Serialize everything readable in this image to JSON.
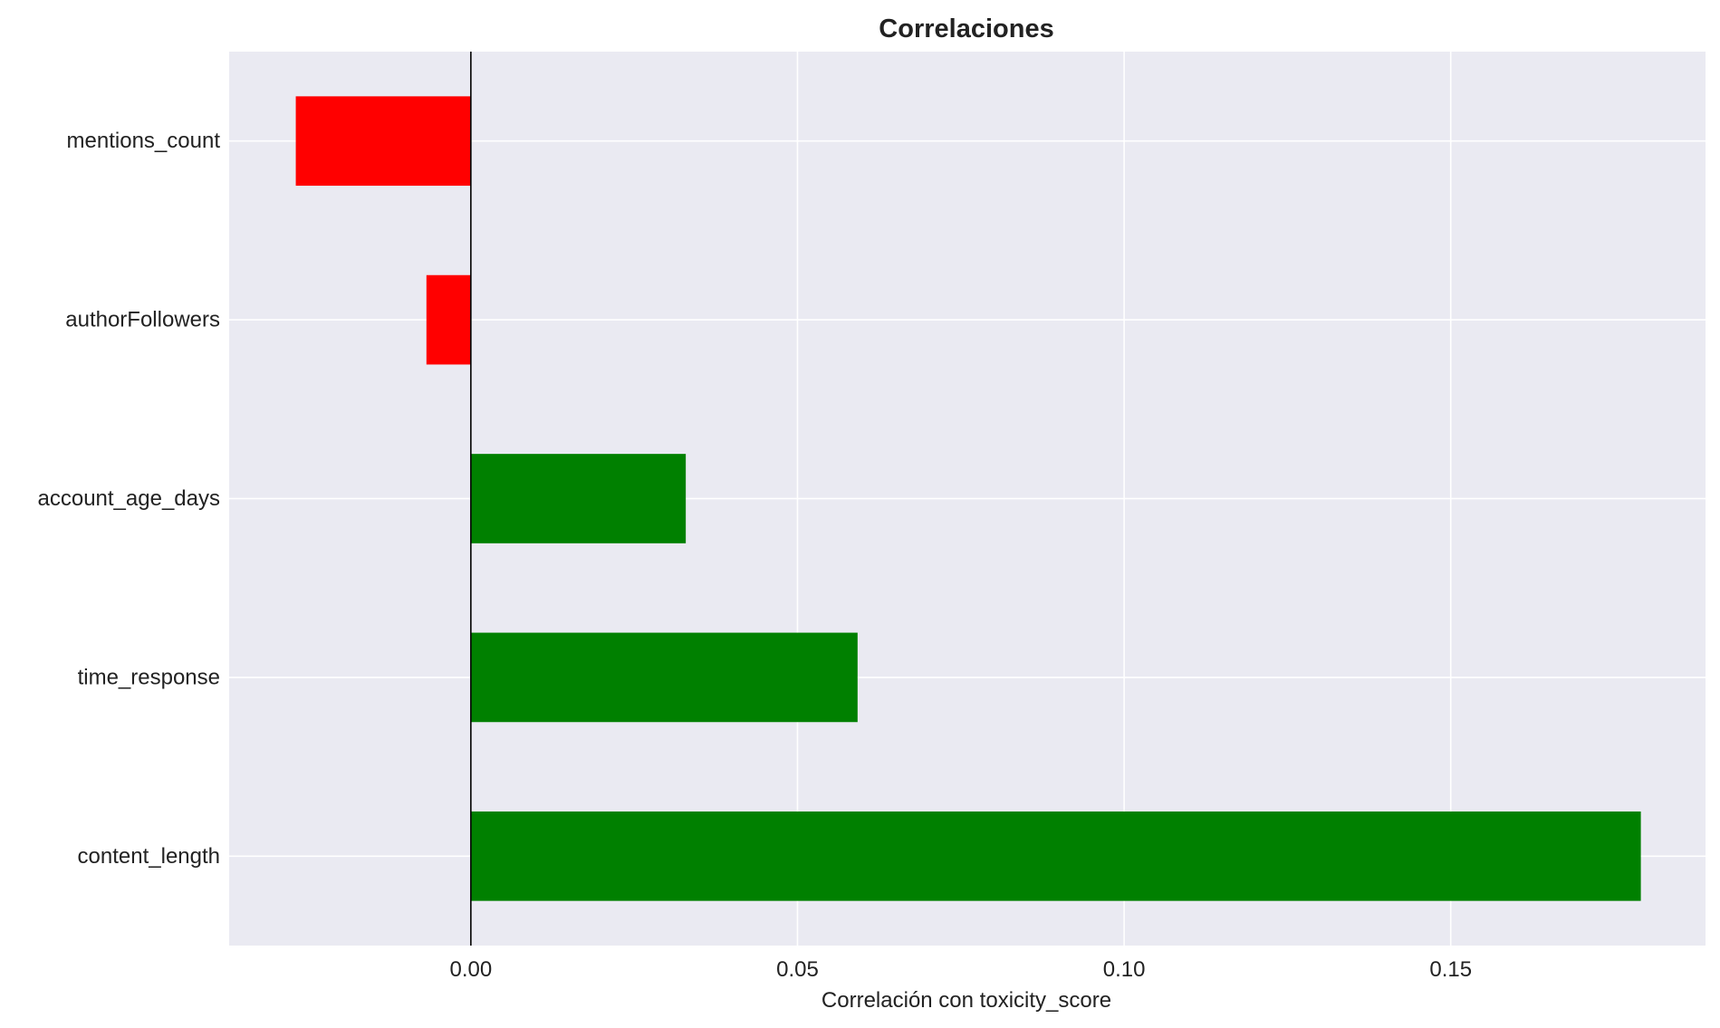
{
  "chart_data": {
    "type": "bar",
    "orientation": "horizontal",
    "title": "Correlaciones",
    "xlabel": "Correlación con toxicity_score",
    "ylabel": "",
    "categories": [
      "mentions_count",
      "authorFollowers",
      "account_age_days",
      "time_response",
      "content_length"
    ],
    "values": [
      -0.0268,
      -0.0068,
      0.0329,
      0.0592,
      0.1791
    ],
    "xlim": [
      -0.037,
      0.189
    ],
    "xticks": [
      0.0,
      0.05,
      0.1,
      0.15
    ],
    "xtick_labels": [
      "0.00",
      "0.05",
      "0.10",
      "0.15"
    ],
    "grid": true,
    "zero_line": true,
    "colors": {
      "positive": "#008000",
      "negative": "#ff0000",
      "background": "#eaeaf2",
      "grid": "#ffffff",
      "zero_line": "#000000"
    }
  }
}
